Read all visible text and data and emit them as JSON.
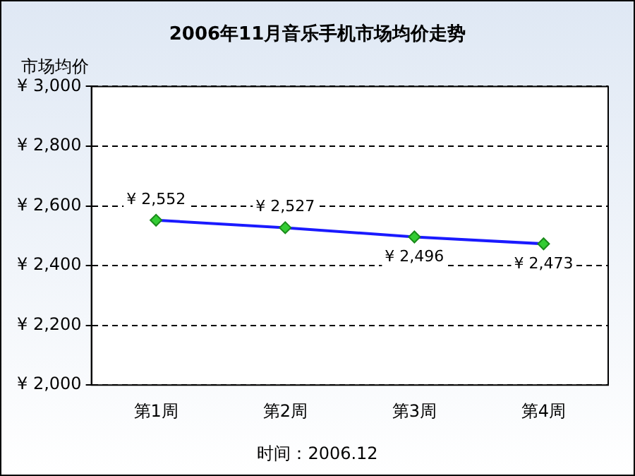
{
  "chart_data": {
    "type": "line",
    "title": "2006年11月音乐手机市场均价走势",
    "ylabel": "市场均价",
    "categories": [
      "第1周",
      "第2周",
      "第3周",
      "第4周"
    ],
    "series": [
      {
        "color": "#1a1aff",
        "values": [
          2552,
          2527,
          2496,
          2473
        ],
        "value_labels": [
          "¥ 2,552",
          "¥ 2,527",
          "¥ 2,496",
          "¥ 2,473"
        ]
      }
    ],
    "ylim": [
      2000,
      3000
    ],
    "yticks": [
      {
        "value": 2000,
        "label": "¥ 2,000"
      },
      {
        "value": 2200,
        "label": "¥ 2,200"
      },
      {
        "value": 2400,
        "label": "¥ 2,400"
      },
      {
        "value": 2600,
        "label": "¥ 2,600"
      },
      {
        "value": 2800,
        "label": "¥ 2,800"
      },
      {
        "value": 3000,
        "label": "¥ 3,000"
      }
    ],
    "grid": "y",
    "legend": false,
    "marker": "diamond",
    "line_style": "solid",
    "annotations": [
      "时间：2006.12"
    ]
  }
}
